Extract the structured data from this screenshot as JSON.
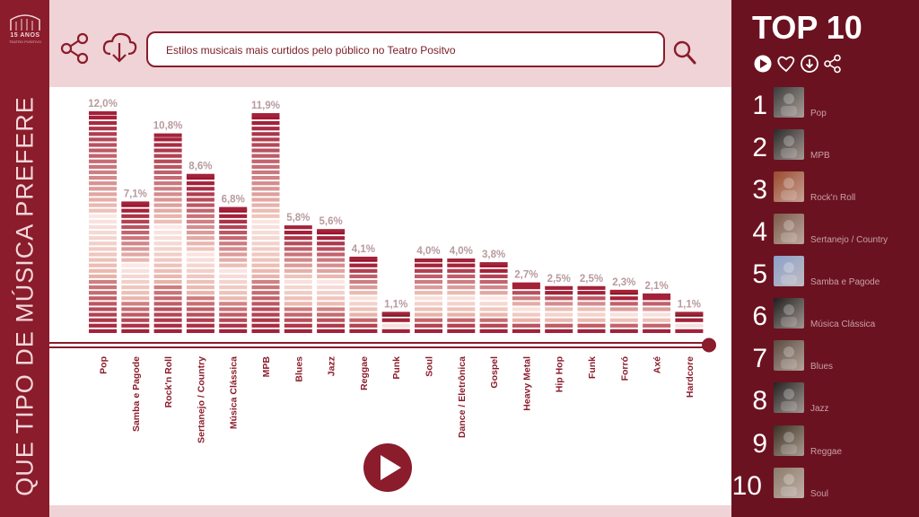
{
  "sidebar": {
    "logo_text": "15 ANOS",
    "logo_sub": "TEATRO POSITIVO",
    "vertical_title": "QUE TIPO DE MÚSICA PREFERE"
  },
  "header": {
    "search_text": "Estilos musicais mais curtidos pelo público no Teatro Positvo"
  },
  "right_panel": {
    "title": "TOP 10",
    "ranking": [
      {
        "rank": "1",
        "label": "Pop",
        "color": "#3b3b3b"
      },
      {
        "rank": "2",
        "label": "MPB",
        "color": "#2a2a2a"
      },
      {
        "rank": "3",
        "label": "Rock'n Roll",
        "color": "#9a4a2e"
      },
      {
        "rank": "4",
        "label": "Sertanejo / Country",
        "color": "#7a5a4a"
      },
      {
        "rank": "5",
        "label": "Samba e Pagode",
        "color": "#8aa0c8"
      },
      {
        "rank": "6",
        "label": "Música Clássica",
        "color": "#1e1e1e"
      },
      {
        "rank": "7",
        "label": "Blues",
        "color": "#5a4a3e"
      },
      {
        "rank": "8",
        "label": "Jazz",
        "color": "#222222"
      },
      {
        "rank": "9",
        "label": "Reggae",
        "color": "#3a3020"
      },
      {
        "rank": "10",
        "label": "Soul",
        "color": "#8a7a6a"
      }
    ]
  },
  "colors": {
    "dark": "#8a1c2b",
    "panel": "#6b1220",
    "light": "#efd3d6",
    "bar_top": "#a3223a",
    "bar_mid": "#f0c6bc",
    "bar_low": "#e8b2a8"
  },
  "chart_data": {
    "type": "bar",
    "categories": [
      "Pop",
      "Samba e Pagode",
      "Rock'n Roll",
      "Sertanejo / Country",
      "Música Clássica",
      "MPB",
      "Blues",
      "Jazz",
      "Reggae",
      "Punk",
      "Soul",
      "Dance / Eletrônica",
      "Gospel",
      "Heavy Metal",
      "Hip Hop",
      "Funk",
      "Forró",
      "Axé",
      "Hardcore"
    ],
    "values": [
      12.0,
      7.1,
      10.8,
      8.6,
      6.8,
      11.9,
      5.8,
      5.6,
      4.1,
      1.1,
      4.0,
      4.0,
      3.8,
      2.7,
      2.5,
      2.5,
      2.3,
      2.1,
      1.1
    ],
    "value_labels": [
      "12,0%",
      "7,1%",
      "10,8%",
      "8,6%",
      "6,8%",
      "11,9%",
      "5,8%",
      "5,6%",
      "4,1%",
      "1,1%",
      "4,0%",
      "4,0%",
      "3,8%",
      "2,7%",
      "2,5%",
      "2,5%",
      "2,3%",
      "2,1%",
      "1,1%"
    ],
    "unit": "%",
    "ylim": [
      0,
      12.0
    ],
    "grid": false,
    "title": "",
    "xlabel": "",
    "ylabel": ""
  }
}
